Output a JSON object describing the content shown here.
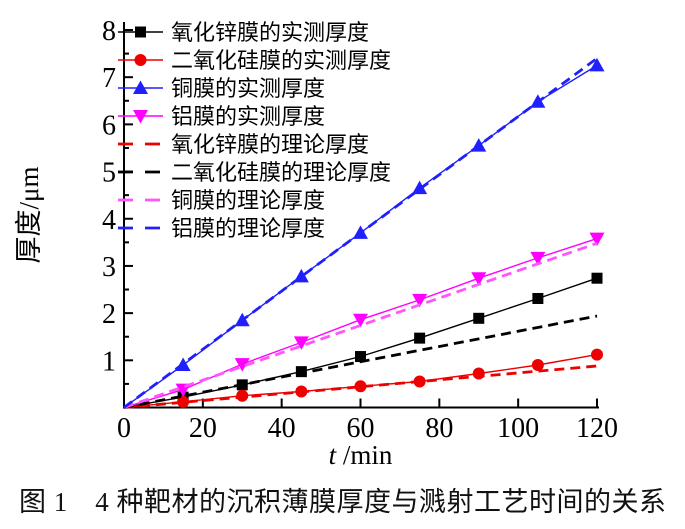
{
  "figure": {
    "caption": "图 1　4 种靶材的沉积薄膜厚度与溅射工艺时间的关系"
  },
  "chart_data": {
    "type": "line",
    "title": "",
    "xlabel_italic": "t",
    "xlabel_rest": " /min",
    "ylabel": "厚度/μm",
    "xlim": [
      0,
      120
    ],
    "ylim": [
      0,
      8
    ],
    "xticks": [
      0,
      20,
      40,
      60,
      80,
      100,
      120
    ],
    "yticks": [
      1,
      2,
      3,
      4,
      5,
      6,
      7,
      8
    ],
    "y_minor_step": 0.5,
    "grid": false,
    "legend_position": "top-left-inside",
    "series": [
      {
        "key": "zno-measured",
        "name": "氧化锌膜的实测厚度",
        "color": "#000000",
        "marker": "square",
        "line": "solid",
        "x": [
          0,
          15,
          30,
          45,
          60,
          75,
          90,
          105,
          120
        ],
        "values": [
          0,
          0.22,
          0.48,
          0.76,
          1.08,
          1.47,
          1.89,
          2.31,
          2.74
        ]
      },
      {
        "key": "sio2-measured",
        "name": "二氧化硅膜的实测厚度",
        "color": "#ee0000",
        "marker": "circle",
        "line": "solid",
        "x": [
          0,
          15,
          30,
          45,
          60,
          75,
          90,
          105,
          120
        ],
        "values": [
          0,
          0.12,
          0.25,
          0.34,
          0.45,
          0.55,
          0.72,
          0.9,
          1.12
        ]
      },
      {
        "key": "cu-measured",
        "name": "铜膜的实测厚度",
        "color": "#2020ff",
        "marker": "triangle-up",
        "line": "solid",
        "x": [
          0,
          15,
          30,
          45,
          60,
          75,
          90,
          105,
          120
        ],
        "values": [
          0,
          0.9,
          1.85,
          2.78,
          3.7,
          4.65,
          5.55,
          6.48,
          7.25
        ]
      },
      {
        "key": "al-measured",
        "name": "铝膜的实测厚度",
        "color": "#ff00ff",
        "marker": "triangle-down",
        "line": "solid",
        "x": [
          0,
          15,
          30,
          45,
          60,
          75,
          90,
          105,
          120
        ],
        "values": [
          0,
          0.38,
          0.92,
          1.38,
          1.86,
          2.28,
          2.74,
          3.17,
          3.58
        ]
      },
      {
        "key": "zno-theoretical",
        "name": "氧化锌膜的理论厚度",
        "color": "#ee0000",
        "marker": "none",
        "line": "dashed",
        "x": [
          0,
          120
        ],
        "values": [
          0,
          0.88
        ]
      },
      {
        "key": "sio2-theoretical",
        "name": "二氧化硅膜的理论厚度",
        "color": "#000000",
        "marker": "none",
        "line": "dashed",
        "x": [
          0,
          120
        ],
        "values": [
          0,
          1.94
        ]
      },
      {
        "key": "cu-theoretical",
        "name": "铜膜的理论厚度",
        "color": "#ff55ff",
        "marker": "none",
        "line": "dashed",
        "x": [
          0,
          120
        ],
        "values": [
          0,
          3.48
        ]
      },
      {
        "key": "al-theoretical",
        "name": "铝膜的理论厚度",
        "color": "#2020ff",
        "marker": "none",
        "line": "dashed",
        "x": [
          0,
          120
        ],
        "values": [
          0,
          7.4
        ]
      }
    ]
  }
}
